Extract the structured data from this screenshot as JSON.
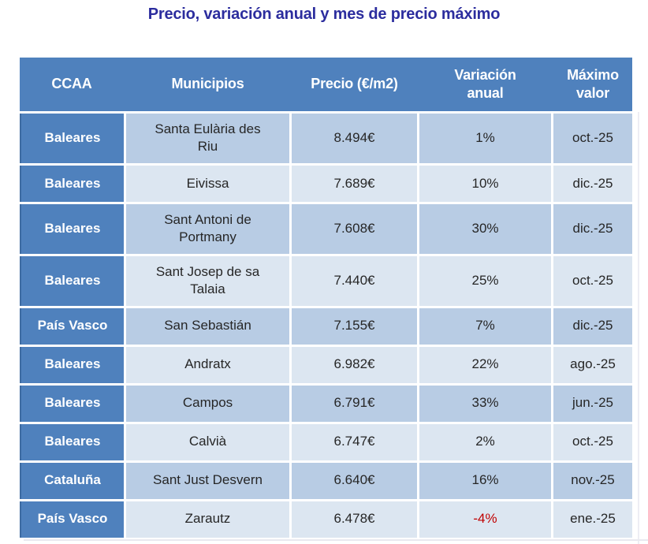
{
  "title": "Precio, variación anual y mes de precio máximo",
  "chart_data": {
    "type": "table",
    "title": "Precio, variación anual y mes de precio máximo",
    "columns": [
      "CCAA",
      "Municipios",
      "Precio (€/m2)",
      "Variación anual",
      "Máximo valor"
    ],
    "rows": [
      [
        "Baleares",
        "Santa Eulària des Riu",
        "8.494€",
        "1%",
        "oct.-25"
      ],
      [
        "Baleares",
        "Eivissa",
        "7.689€",
        "10%",
        "dic.-25"
      ],
      [
        "Baleares",
        "Sant Antoni de Portmany",
        "7.608€",
        "30%",
        "dic.-25"
      ],
      [
        "Baleares",
        "Sant Josep de sa Talaia",
        "7.440€",
        "25%",
        "oct.-25"
      ],
      [
        "País Vasco",
        "San Sebastián",
        "7.155€",
        "7%",
        "dic.-25"
      ],
      [
        "Baleares",
        "Andratx",
        "6.982€",
        "22%",
        "ago.-25"
      ],
      [
        "Baleares",
        "Campos",
        "6.791€",
        "33%",
        "jun.-25"
      ],
      [
        "Baleares",
        "Calvià",
        "6.747€",
        "2%",
        "oct.-25"
      ],
      [
        "Cataluña",
        "Sant Just Desvern",
        "6.640€",
        "16%",
        "nov.-25"
      ],
      [
        "País Vasco",
        "Zarautz",
        "6.478€",
        "-4%",
        "ene.-25"
      ]
    ],
    "legend": "none",
    "grid": "banded-rows"
  },
  "colors": {
    "header_bg": "#4f81bd",
    "first_column_bg": "#4f81bd",
    "row_band_dark": "#b8cce4",
    "row_band_light": "#dce6f1",
    "title_text": "#2c2d9e",
    "header_text": "#ffffff",
    "body_text": "#262626",
    "negative_value": "#c00000"
  }
}
